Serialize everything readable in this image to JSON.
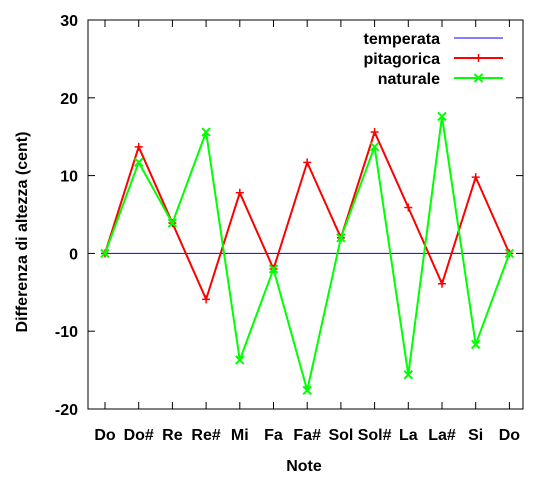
{
  "chart_data": {
    "type": "line",
    "xlabel": "Note",
    "ylabel": "Differenza di altezza (cent)",
    "categories": [
      "Do",
      "Do#",
      "Re",
      "Re#",
      "Mi",
      "Fa",
      "Fa#",
      "Sol",
      "Sol#",
      "La",
      "La#",
      "Si",
      "Do"
    ],
    "ylim": [
      -20,
      30
    ],
    "yticks": [
      -20,
      -10,
      0,
      10,
      20,
      30
    ],
    "ytick_labels": [
      "-20",
      "-10",
      "0",
      "10",
      "20",
      "30"
    ],
    "legend_position": "top-right",
    "series": [
      {
        "name": "temperata",
        "color": "#0000ff",
        "marker": "none",
        "values": [
          0,
          0,
          0,
          0,
          0,
          0,
          0,
          0,
          0,
          0,
          0,
          0,
          0
        ]
      },
      {
        "name": "pitagorica",
        "color": "#ff0000",
        "marker": "plus",
        "values": [
          0,
          13.7,
          3.9,
          -5.9,
          7.8,
          -2.0,
          11.7,
          2.0,
          15.6,
          5.9,
          -3.9,
          9.8,
          0
        ]
      },
      {
        "name": "naturale",
        "color": "#00ff00",
        "marker": "cross",
        "values": [
          0,
          11.7,
          3.9,
          15.6,
          -13.7,
          -2.0,
          -17.6,
          2.0,
          13.7,
          -15.6,
          17.6,
          -11.7,
          0
        ]
      }
    ]
  }
}
